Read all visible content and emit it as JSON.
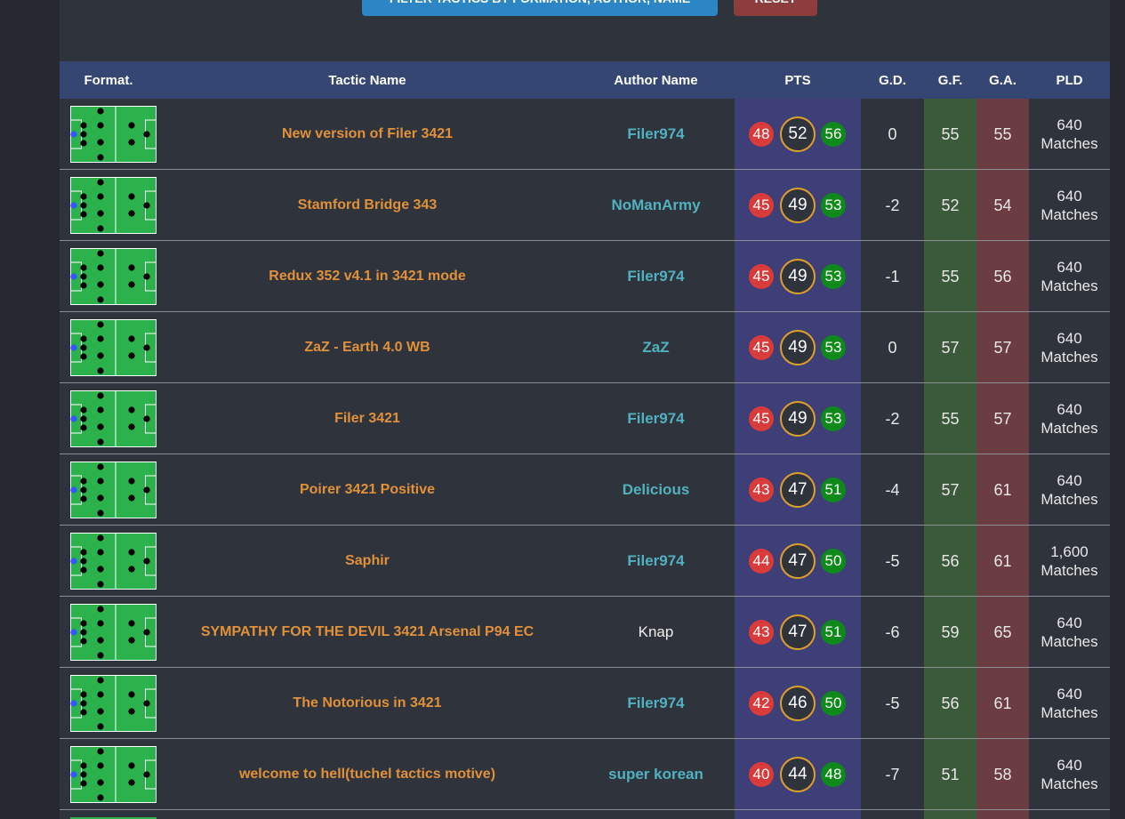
{
  "buttons": {
    "filter": "FILTER TACTICS BY FORMATION, AUTHOR, NAME",
    "reset": "RESET"
  },
  "table": {
    "headers": [
      "Format.",
      "Tactic Name",
      "Author Name",
      "PTS",
      "G.D.",
      "G.F.",
      "G.A.",
      "PLD"
    ],
    "rows": [
      {
        "name": "New version of Filer 3421",
        "author": "Filer974",
        "linked": true,
        "pts": [
          48,
          52,
          56
        ],
        "gd": 0,
        "gf": 55,
        "ga": 55,
        "pld": "640 Matches"
      },
      {
        "name": "Stamford Bridge 343",
        "author": "NoManArmy",
        "linked": true,
        "pts": [
          45,
          49,
          53
        ],
        "gd": -2,
        "gf": 52,
        "ga": 54,
        "pld": "640 Matches"
      },
      {
        "name": "Redux 352 v4.1 in 3421 mode",
        "author": "Filer974",
        "linked": true,
        "pts": [
          45,
          49,
          53
        ],
        "gd": -1,
        "gf": 55,
        "ga": 56,
        "pld": "640 Matches"
      },
      {
        "name": "ZaZ - Earth 4.0 WB",
        "author": "ZaZ",
        "linked": true,
        "pts": [
          45,
          49,
          53
        ],
        "gd": 0,
        "gf": 57,
        "ga": 57,
        "pld": "640 Matches"
      },
      {
        "name": "Filer 3421",
        "author": "Filer974",
        "linked": true,
        "pts": [
          45,
          49,
          53
        ],
        "gd": -2,
        "gf": 55,
        "ga": 57,
        "pld": "640 Matches"
      },
      {
        "name": "Poirer 3421 Positive",
        "author": "Delicious",
        "linked": true,
        "pts": [
          43,
          47,
          51
        ],
        "gd": -4,
        "gf": 57,
        "ga": 61,
        "pld": "640 Matches"
      },
      {
        "name": "Saphir",
        "author": "Filer974",
        "linked": true,
        "pts": [
          44,
          47,
          50
        ],
        "gd": -5,
        "gf": 56,
        "ga": 61,
        "pld": "1,600 Matches"
      },
      {
        "name": "SYMPATHY FOR THE DEVIL 3421 Arsenal P94 EC",
        "author": "Knap",
        "linked": false,
        "pts": [
          43,
          47,
          51
        ],
        "gd": -6,
        "gf": 59,
        "ga": 65,
        "pld": "640 Matches"
      },
      {
        "name": "The Notorious in 3421",
        "author": "Filer974",
        "linked": true,
        "pts": [
          42,
          46,
          50
        ],
        "gd": -5,
        "gf": 56,
        "ga": 61,
        "pld": "640 Matches"
      },
      {
        "name": "welcome to hell(tuchel tactics motive)",
        "author": "super korean",
        "linked": true,
        "pts": [
          40,
          44,
          48
        ],
        "gd": -7,
        "gf": 51,
        "ga": 58,
        "pld": "640 Matches"
      }
    ]
  }
}
